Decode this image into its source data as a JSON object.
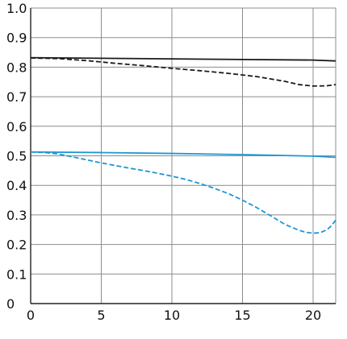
{
  "chart_data": {
    "type": "line",
    "title": "",
    "xlabel": "",
    "ylabel": "",
    "xlim": [
      0,
      21.6
    ],
    "ylim": [
      0,
      1.0
    ],
    "x_ticks": [
      0,
      5,
      10,
      15,
      20
    ],
    "y_ticks": [
      0,
      0.1,
      0.2,
      0.3,
      0.4,
      0.5,
      0.6,
      0.7,
      0.8,
      0.9,
      1.0
    ],
    "x_tick_labels": [
      "0",
      "5",
      "10",
      "15",
      "20"
    ],
    "y_tick_labels": [
      "0",
      "0.1",
      "0.2",
      "0.3",
      "0.4",
      "0.5",
      "0.6",
      "0.7",
      "0.8",
      "0.9",
      "1.0"
    ],
    "grid": true,
    "legend": "none",
    "series": [
      {
        "color": "#1a1a1a",
        "dash": "solid",
        "x": [
          0,
          5,
          10,
          15,
          20,
          21.6
        ],
        "y": [
          0.832,
          0.83,
          0.828,
          0.826,
          0.824,
          0.821
        ]
      },
      {
        "color": "#1a1a1a",
        "dash": "dashed",
        "x": [
          0,
          2,
          4,
          6,
          8,
          10,
          12,
          14,
          16,
          18,
          19,
          20,
          21,
          21.6
        ],
        "y": [
          0.831,
          0.829,
          0.822,
          0.813,
          0.805,
          0.796,
          0.788,
          0.779,
          0.768,
          0.752,
          0.741,
          0.736,
          0.737,
          0.741
        ]
      },
      {
        "color": "#1f96d2",
        "dash": "solid",
        "x": [
          0,
          5,
          10,
          15,
          20,
          21.6
        ],
        "y": [
          0.513,
          0.511,
          0.508,
          0.504,
          0.499,
          0.495
        ]
      },
      {
        "color": "#1f96d2",
        "dash": "dashed",
        "x": [
          0,
          1,
          2,
          3,
          4,
          5,
          6,
          7,
          8,
          9,
          10,
          11,
          12,
          13,
          14,
          15,
          16,
          17,
          18,
          19,
          19.5,
          20,
          20.5,
          21,
          21.3,
          21.6
        ],
        "y": [
          0.513,
          0.511,
          0.506,
          0.496,
          0.486,
          0.476,
          0.467,
          0.458,
          0.45,
          0.441,
          0.431,
          0.42,
          0.406,
          0.39,
          0.372,
          0.35,
          0.325,
          0.297,
          0.268,
          0.248,
          0.241,
          0.238,
          0.24,
          0.25,
          0.264,
          0.282
        ]
      }
    ]
  }
}
